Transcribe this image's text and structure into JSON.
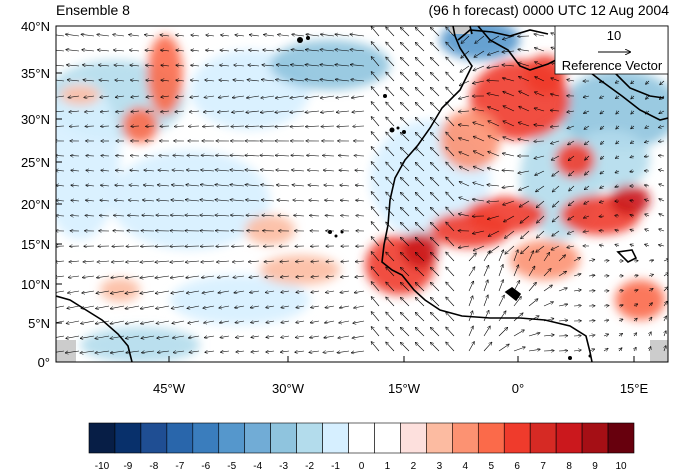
{
  "header": {
    "left_title": "Ensemble 8",
    "right_title": "(96 h forecast) 0000 UTC 12 Aug 2004"
  },
  "reference_vector": {
    "value": "10",
    "label": "Reference Vector"
  },
  "lat_labels": [
    "40°N",
    "35°N",
    "30°N",
    "25°N",
    "20°N",
    "15°N",
    "10°N",
    "5°N",
    "0°"
  ],
  "lon_labels": [
    "45°W",
    "30°W",
    "15°W",
    "0°",
    "15°E"
  ],
  "colorbar": {
    "labels": [
      "-10",
      "-9",
      "-8",
      "-7",
      "-6",
      "-5",
      "-4",
      "-3",
      "-2",
      "-1",
      "0",
      "1",
      "2",
      "3",
      "4",
      "5",
      "6",
      "7",
      "8",
      "9",
      "10"
    ],
    "colors": [
      "#071e46",
      "#08306b",
      "#1f4e93",
      "#2966ab",
      "#3a7dbd",
      "#5597cc",
      "#71acd6",
      "#8fc4de",
      "#b3dcec",
      "#d6efff",
      "#ffffff",
      "#ffffff",
      "#fde0dd",
      "#fcbba1",
      "#fc9272",
      "#fb6a4a",
      "#ef3b2c",
      "#d62a24",
      "#cb181d",
      "#a50f15",
      "#67000d"
    ]
  },
  "colors": {
    "land_mask": "#cccccc",
    "coastline": "#000000",
    "vectors": "#000000"
  }
}
